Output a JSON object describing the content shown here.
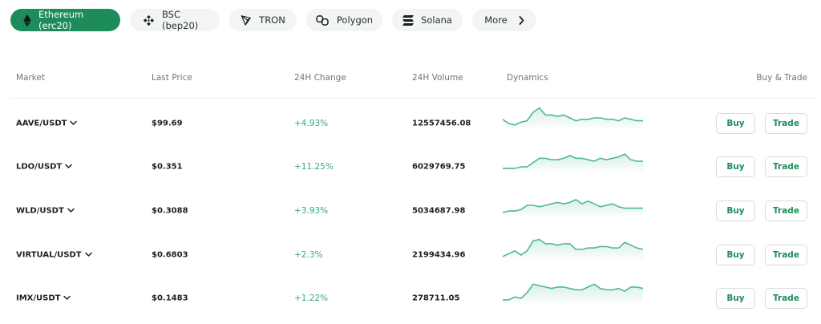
{
  "colors": {
    "accent": "#1e8c5a",
    "positive": "#3aa978",
    "sparkline": "#4fb892",
    "tab_bg": "#f3f5f5"
  },
  "network_tabs": [
    {
      "label": "Ethereum (erc20)",
      "icon": "ethereum-icon",
      "active": true
    },
    {
      "label": "BSC (bep20)",
      "icon": "bnb-icon",
      "active": false
    },
    {
      "label": "TRON",
      "icon": "tron-icon",
      "active": false
    },
    {
      "label": "Polygon",
      "icon": "polygon-icon",
      "active": false
    },
    {
      "label": "Solana",
      "icon": "solana-icon",
      "active": false
    },
    {
      "label": "More",
      "icon": "chevron-right-icon",
      "active": false
    }
  ],
  "table": {
    "headers": {
      "market": "Market",
      "last_price": "Last Price",
      "change_24h": "24H Change",
      "volume_24h": "24H Volume",
      "dynamics": "Dynamics",
      "buy_trade": "Buy & Trade"
    },
    "buy_label": "Buy",
    "trade_label": "Trade",
    "rows": [
      {
        "market": "AAVE/USDT",
        "price": "$99.69",
        "change": "+4.93%",
        "volume": "12557456.08",
        "spark": [
          14,
          11,
          10,
          12,
          13,
          19,
          22,
          17,
          17,
          16,
          17,
          15,
          13,
          14,
          14,
          15,
          15,
          14,
          14,
          13,
          15,
          14,
          13,
          13
        ]
      },
      {
        "market": "LDO/USDT",
        "price": "$0.351",
        "change": "+11.25%",
        "volume": "6029769.75",
        "spark": [
          10,
          10,
          10,
          11,
          11,
          14,
          17,
          17,
          16,
          16,
          17,
          19,
          17,
          17,
          16,
          15,
          17,
          16,
          17,
          18,
          20,
          16,
          15,
          15
        ]
      },
      {
        "market": "WLD/USDT",
        "price": "$0.3088",
        "change": "+3.93%",
        "volume": "5034687.98",
        "spark": [
          10,
          11,
          11,
          12,
          15,
          15,
          14,
          15,
          16,
          17,
          16,
          17,
          19,
          16,
          18,
          16,
          14,
          15,
          16,
          14,
          13,
          13,
          13,
          13
        ]
      },
      {
        "market": "VIRTUAL/USDT",
        "price": "$0.6803",
        "change": "+2.3%",
        "volume": "2199434.96",
        "spark": [
          10,
          12,
          14,
          11,
          14,
          21,
          22,
          19,
          19,
          18,
          19,
          19,
          15,
          15,
          16,
          16,
          17,
          17,
          16,
          16,
          20,
          18,
          16,
          15
        ]
      },
      {
        "market": "IMX/USDT",
        "price": "$0.1483",
        "change": "+1.22%",
        "volume": "278711.05",
        "spark": [
          10,
          10,
          12,
          11,
          15,
          21,
          20,
          19,
          18,
          19,
          19,
          18,
          17,
          17,
          19,
          21,
          18,
          17,
          17,
          18,
          16,
          19,
          19,
          18
        ]
      }
    ]
  }
}
